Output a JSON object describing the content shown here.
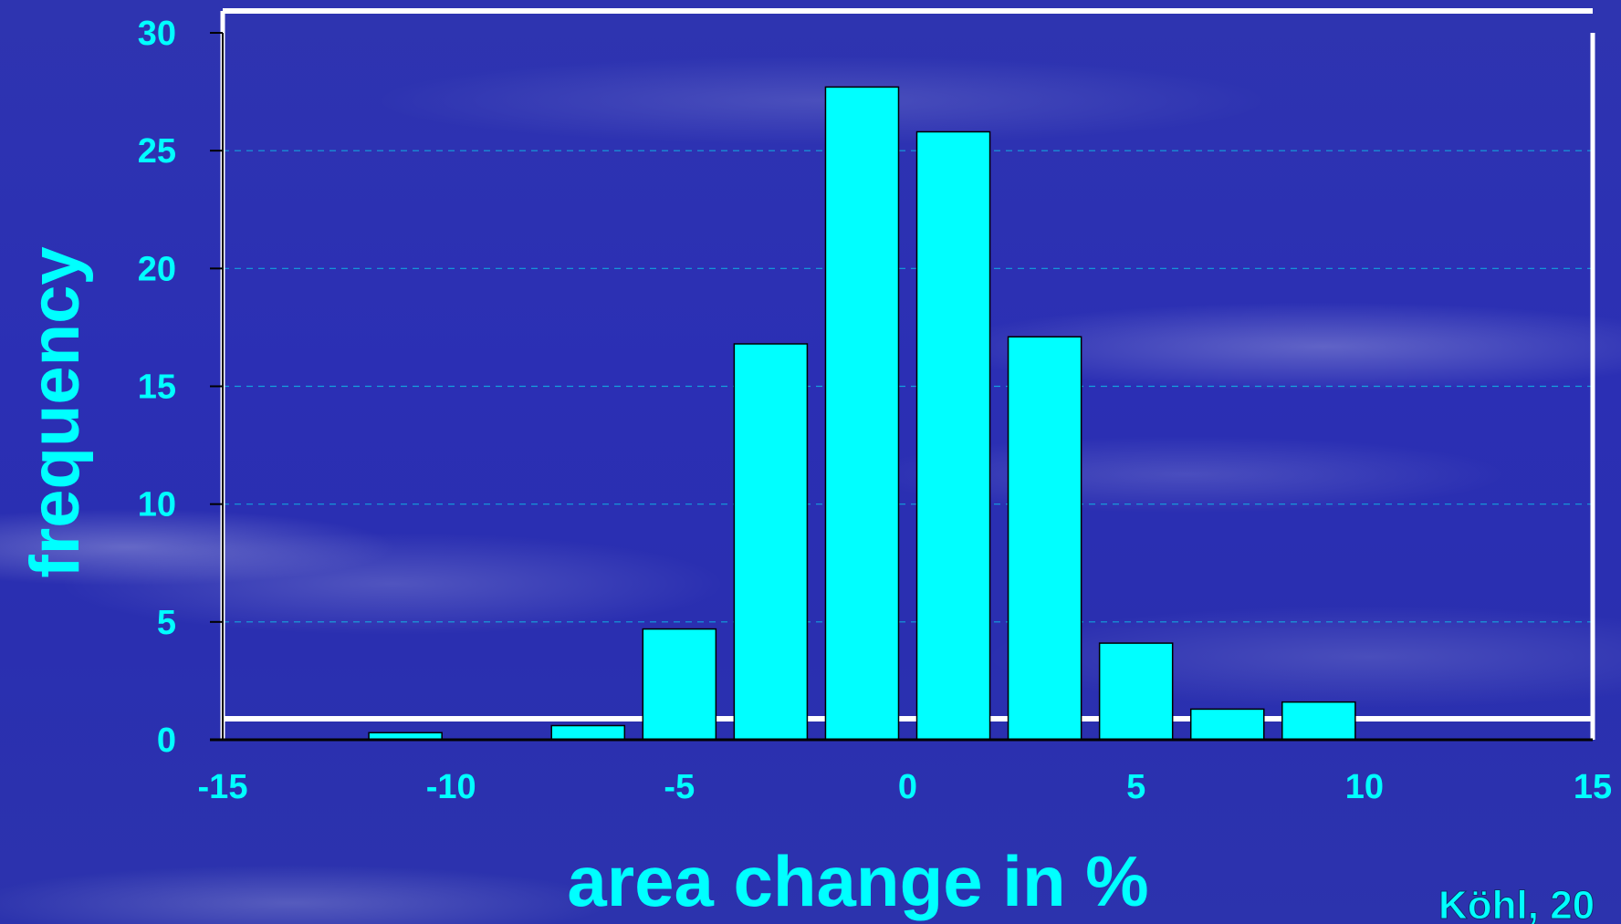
{
  "chart_data": {
    "type": "bar",
    "x": [
      -11,
      -7,
      -5,
      -3,
      -1,
      1,
      3,
      5,
      7,
      9
    ],
    "values": [
      0.3,
      0.6,
      4.7,
      16.8,
      27.7,
      25.8,
      17.1,
      4.1,
      1.3,
      1.6
    ],
    "xlabel": "area change in %",
    "ylabel": "frequency",
    "xlim": [
      -15,
      15
    ],
    "ylim": [
      0,
      30
    ],
    "xticks": [
      -15,
      -10,
      -5,
      0,
      5,
      10,
      15
    ],
    "yticks": [
      0,
      5,
      10,
      15,
      20,
      25,
      30
    ],
    "grid": true,
    "colors": {
      "bar_fill": "#00ffff",
      "bar_stroke": "#000000",
      "axis_text": "#00ffff",
      "frame": "#ffffff",
      "background": "#2b2fb4"
    }
  },
  "credit": "Köhl, 20"
}
